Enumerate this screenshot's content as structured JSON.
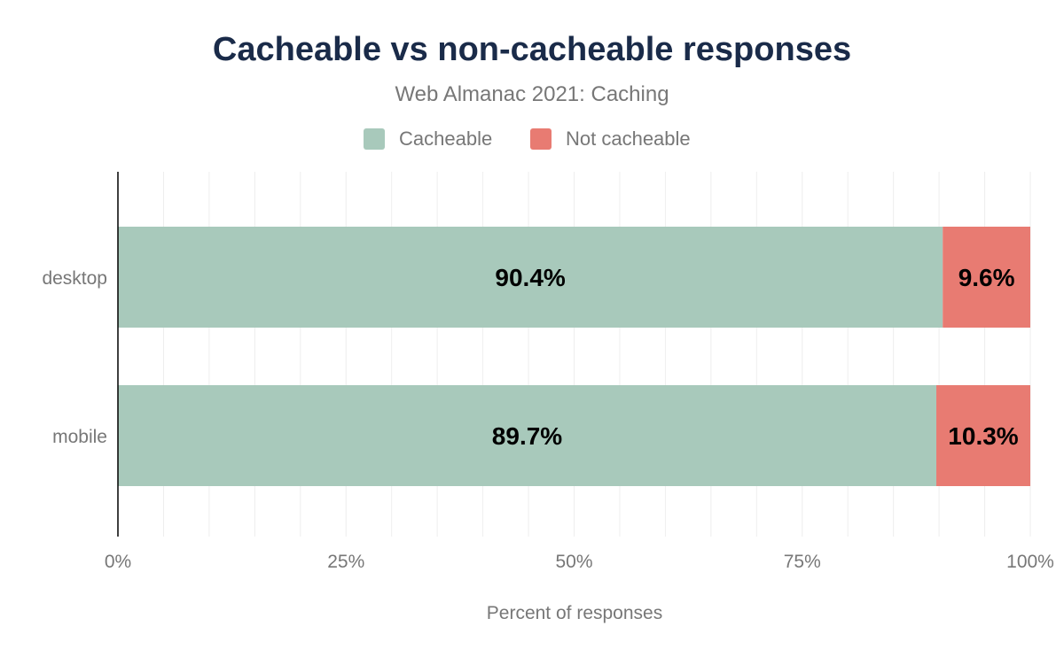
{
  "chart_data": {
    "type": "bar",
    "orientation": "horizontal",
    "stacked": true,
    "title": "Cacheable vs non-cacheable responses",
    "subtitle": "Web Almanac 2021: Caching",
    "xlabel": "Percent of responses",
    "ylabel": "",
    "xlim": [
      0,
      100
    ],
    "x_ticks": [
      "0%",
      "25%",
      "50%",
      "75%",
      "100%"
    ],
    "grid": true,
    "legend_placement": "top",
    "categories": [
      "desktop",
      "mobile"
    ],
    "series": [
      {
        "name": "Cacheable",
        "values": [
          90.4,
          89.7
        ],
        "labels": [
          "90.4%",
          "89.7%"
        ],
        "color": "#a8c9bb"
      },
      {
        "name": "Not cacheable",
        "values": [
          9.6,
          10.3
        ],
        "labels": [
          "9.6%",
          "10.3%"
        ],
        "color": "#e87b72"
      }
    ]
  }
}
